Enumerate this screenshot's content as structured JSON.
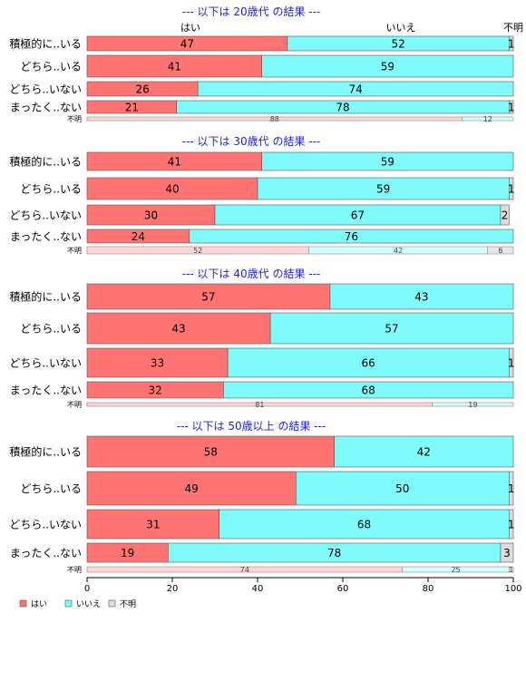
{
  "chart_data": {
    "type": "bar",
    "orientation": "horizontal-stacked-percent",
    "title_color": "#1f1fe0",
    "xlim": [
      0,
      100
    ],
    "x_ticks": [
      "0",
      "20",
      "40",
      "60",
      "80",
      "100"
    ],
    "series": [
      {
        "name": "はい",
        "color": "#ff7373"
      },
      {
        "name": "いいえ",
        "color": "#7ffbfb"
      },
      {
        "name": "不明",
        "color": "#dcdcdc"
      }
    ],
    "top_header_labels": [
      "はい",
      "いいえ",
      "不明"
    ],
    "legend": {
      "placement": "bottom-left",
      "items": [
        "はい",
        "いいえ",
        "不明"
      ]
    },
    "panels": [
      {
        "title": "--- 以下は 20歳代 の結果 ---",
        "rows": [
          {
            "label": "積極的に..いる",
            "values": [
              47,
              52,
              1
            ]
          },
          {
            "label": "どちら..いる",
            "values": [
              41,
              59,
              0
            ]
          },
          {
            "label": "どちら..いない",
            "values": [
              26,
              74,
              0
            ]
          },
          {
            "label": "まったく..ない",
            "values": [
              21,
              78,
              1
            ]
          }
        ],
        "unknown_row": {
          "label": "不明",
          "values": [
            88,
            12,
            0
          ]
        }
      },
      {
        "title": "--- 以下は 30歳代 の結果 ---",
        "rows": [
          {
            "label": "積極的に..いる",
            "values": [
              41,
              59,
              0
            ]
          },
          {
            "label": "どちら..いる",
            "values": [
              40,
              59,
              1
            ]
          },
          {
            "label": "どちら..いない",
            "values": [
              30,
              67,
              2
            ]
          },
          {
            "label": "まったく..ない",
            "values": [
              24,
              76,
              0
            ]
          }
        ],
        "unknown_row": {
          "label": "不明",
          "values": [
            52,
            42,
            6
          ]
        }
      },
      {
        "title": "--- 以下は 40歳代 の結果 ---",
        "rows": [
          {
            "label": "積極的に..いる",
            "values": [
              57,
              43,
              0
            ]
          },
          {
            "label": "どちら..いる",
            "values": [
              43,
              57,
              0
            ]
          },
          {
            "label": "どちら..いない",
            "values": [
              33,
              66,
              1
            ]
          },
          {
            "label": "まったく..ない",
            "values": [
              32,
              68,
              0
            ]
          }
        ],
        "unknown_row": {
          "label": "不明",
          "values": [
            81,
            19,
            0
          ]
        }
      },
      {
        "title": "--- 以下は 50歳以上 の結果 ---",
        "rows": [
          {
            "label": "積極的に..いる",
            "values": [
              58,
              42,
              0
            ]
          },
          {
            "label": "どちら..いる",
            "values": [
              49,
              50,
              1
            ]
          },
          {
            "label": "どちら..いない",
            "values": [
              31,
              68,
              1
            ]
          },
          {
            "label": "まったく..ない",
            "values": [
              19,
              78,
              3
            ]
          }
        ],
        "unknown_row": {
          "label": "不明",
          "values": [
            74,
            25,
            1
          ]
        }
      }
    ]
  }
}
